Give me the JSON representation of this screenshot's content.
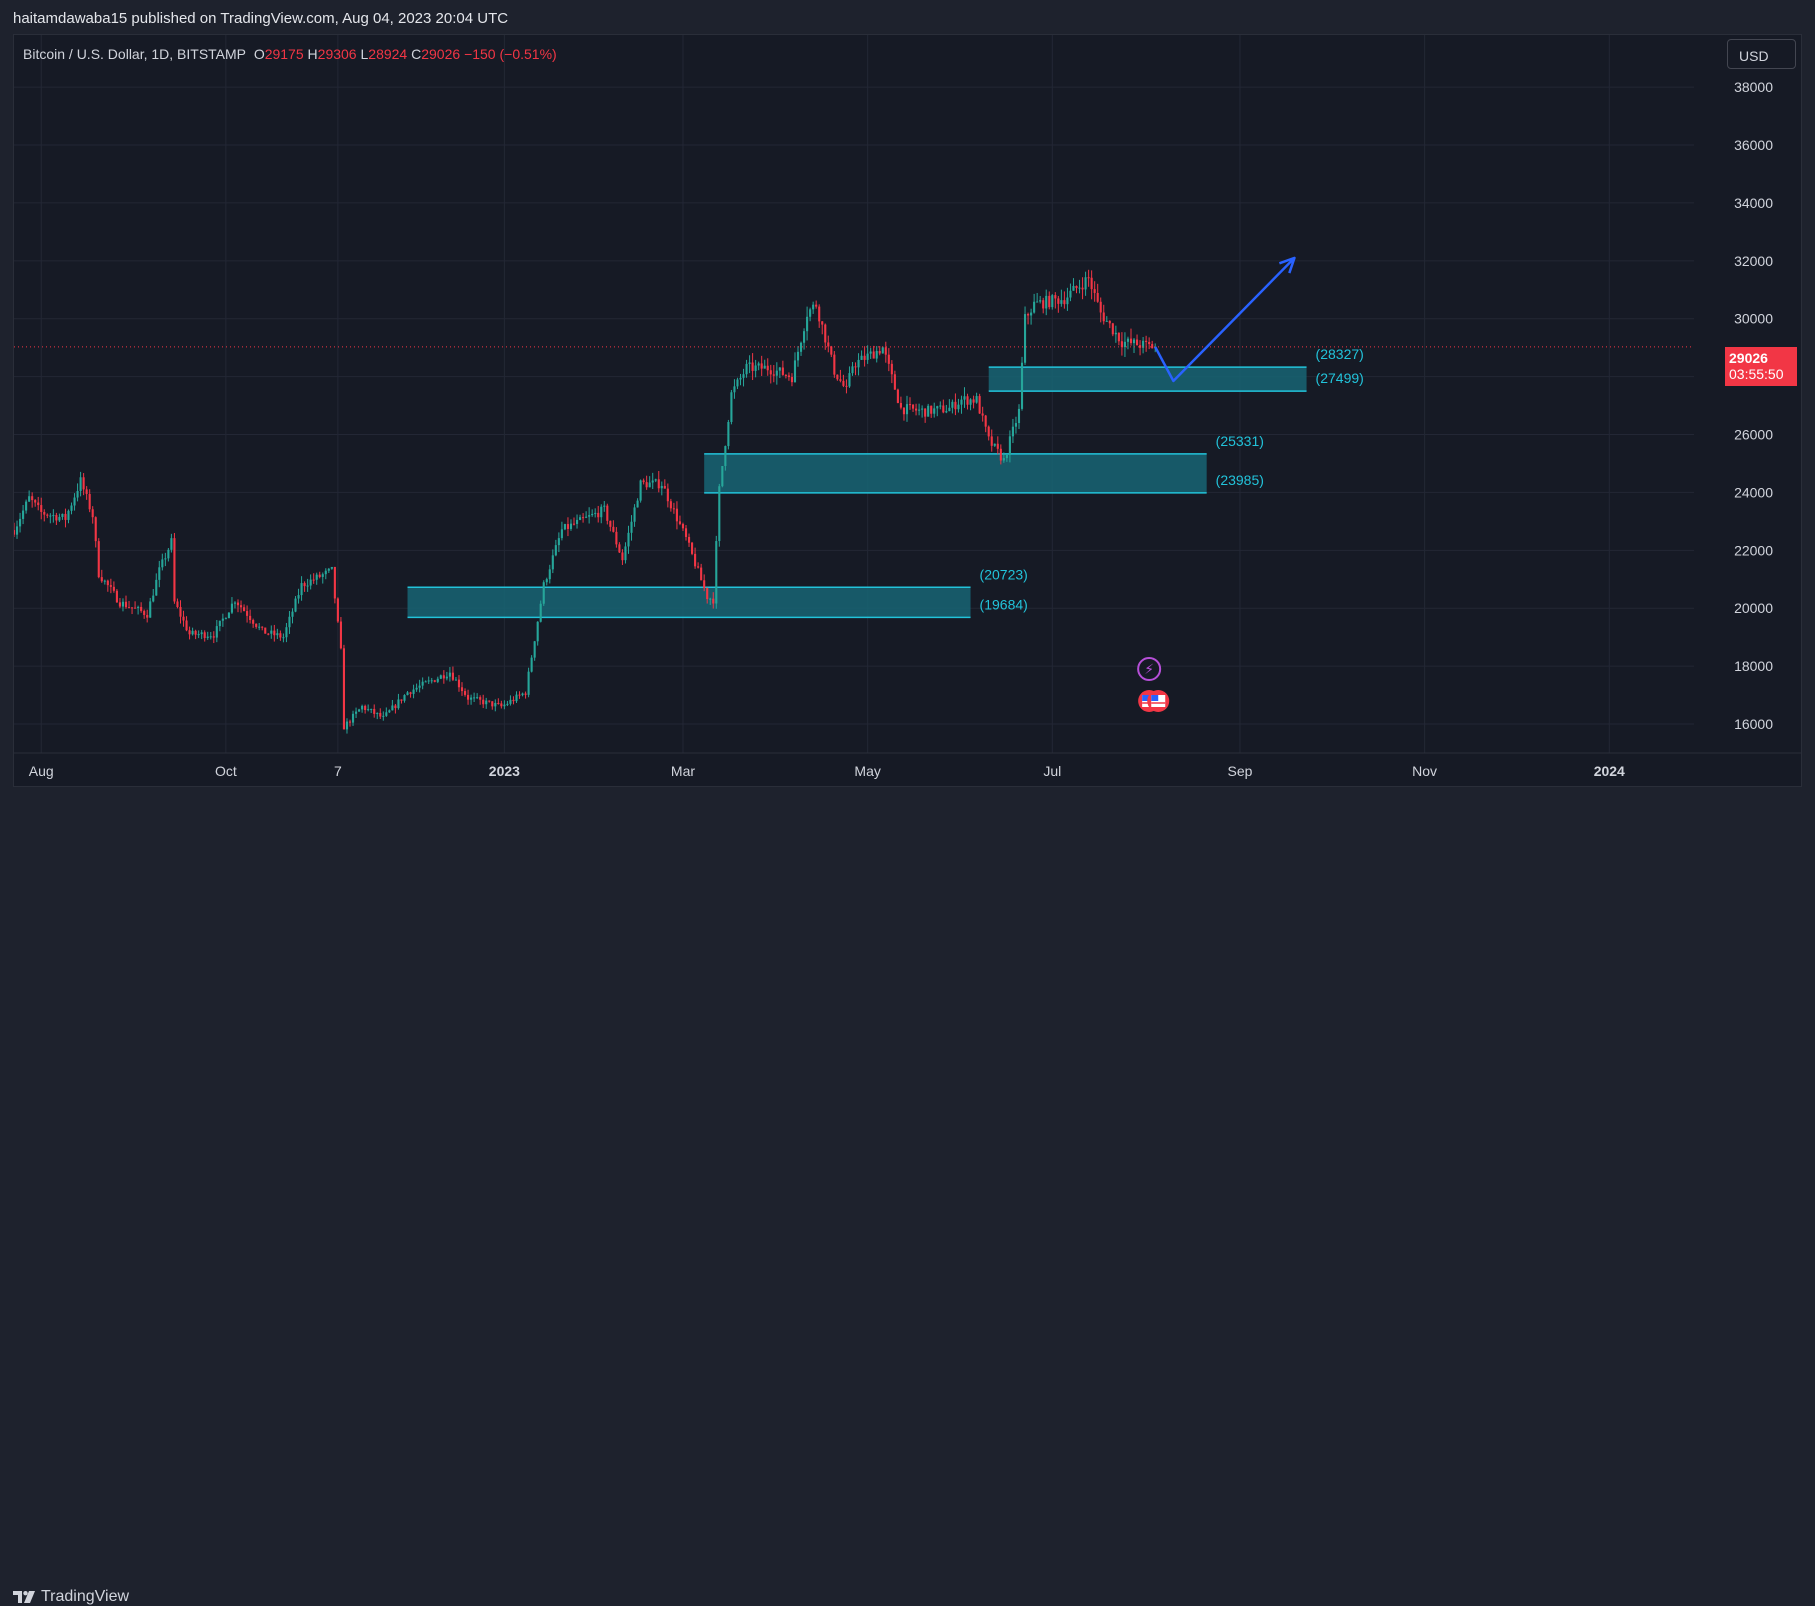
{
  "header": {
    "published_by": "haitamdawaba15 published on TradingView.com, Aug 04, 2023 20:04 UTC"
  },
  "legend": {
    "symbol": "Bitcoin / U.S. Dollar, 1D, BITSTAMP",
    "o_label": "O",
    "o_value": "29175",
    "h_label": "H",
    "h_value": "29306",
    "l_label": "L",
    "l_value": "28924",
    "c_label": "C",
    "c_value": "29026",
    "change": "−150 (−0.51%)"
  },
  "currency": "USD",
  "last_price": {
    "price": "29026",
    "countdown": "03:55:50"
  },
  "footer": {
    "brand": "TradingView"
  },
  "colors": {
    "up": "#26a69a",
    "down": "#f23645",
    "zone_fill": "#176574",
    "zone_border": "#22c3da",
    "arrow": "#2962ff",
    "grid": "#232735",
    "axis_text": "#d1d4dc",
    "zone_label": "#22c3da"
  },
  "icons": [
    "lightning-event-icon",
    "us-flag-event-icon"
  ],
  "chart_data": {
    "type": "candlestick",
    "title": "Bitcoin / U.S. Dollar, 1D, BITSTAMP",
    "x_ticks": [
      "Aug",
      "Oct",
      "7",
      "2023",
      "Mar",
      "May",
      "Jul",
      "Sep",
      "Nov",
      "2024"
    ],
    "x_tick_dates": [
      "2022-08-01",
      "2022-10-01",
      "2022-11-07",
      "2023-01-01",
      "2023-03-01",
      "2023-05-01",
      "2023-07-01",
      "2023-09-01",
      "2023-11-01",
      "2024-01-01"
    ],
    "y_ticks": [
      16000,
      18000,
      20000,
      22000,
      24000,
      26000,
      28000,
      30000,
      32000,
      34000,
      36000,
      38000
    ],
    "ylim": [
      15000,
      39800
    ],
    "xlim": [
      "2022-07-23",
      "2024-03-05"
    ],
    "grid": true,
    "last_price": 29026,
    "price_path": [
      [
        "2022-07-23",
        22700
      ],
      [
        "2022-07-28",
        23800
      ],
      [
        "2022-08-01",
        23300
      ],
      [
        "2022-08-09",
        23100
      ],
      [
        "2022-08-14",
        24400
      ],
      [
        "2022-08-18",
        23200
      ],
      [
        "2022-08-20",
        21200
      ],
      [
        "2022-08-27",
        20200
      ],
      [
        "2022-09-05",
        19800
      ],
      [
        "2022-09-09",
        21300
      ],
      [
        "2022-09-13",
        22300
      ],
      [
        "2022-09-14",
        20200
      ],
      [
        "2022-09-19",
        19100
      ],
      [
        "2022-09-27",
        19100
      ],
      [
        "2022-10-04",
        20300
      ],
      [
        "2022-10-13",
        19200
      ],
      [
        "2022-10-20",
        19000
      ],
      [
        "2022-10-26",
        20800
      ],
      [
        "2022-11-05",
        21300
      ],
      [
        "2022-11-08",
        18500
      ],
      [
        "2022-11-09",
        15900
      ],
      [
        "2022-11-15",
        16600
      ],
      [
        "2022-11-22",
        16200
      ],
      [
        "2022-11-30",
        17100
      ],
      [
        "2022-12-14",
        17800
      ],
      [
        "2022-12-20",
        16900
      ],
      [
        "2022-12-31",
        16600
      ],
      [
        "2023-01-08",
        17100
      ],
      [
        "2023-01-14",
        20800
      ],
      [
        "2023-01-20",
        22700
      ],
      [
        "2023-02-03",
        23400
      ],
      [
        "2023-02-09",
        21700
      ],
      [
        "2023-02-15",
        24300
      ],
      [
        "2023-02-22",
        24300
      ],
      [
        "2023-03-02",
        22400
      ],
      [
        "2023-03-09",
        20400
      ],
      [
        "2023-03-11",
        20300
      ],
      [
        "2023-03-13",
        24100
      ],
      [
        "2023-03-17",
        27400
      ],
      [
        "2023-03-22",
        28300
      ],
      [
        "2023-03-29",
        28300
      ],
      [
        "2023-04-06",
        28000
      ],
      [
        "2023-04-11",
        30200
      ],
      [
        "2023-04-14",
        30500
      ],
      [
        "2023-04-20",
        28200
      ],
      [
        "2023-04-24",
        27500
      ],
      [
        "2023-04-26",
        28400
      ],
      [
        "2023-05-06",
        29000
      ],
      [
        "2023-05-12",
        26900
      ],
      [
        "2023-05-20",
        26800
      ],
      [
        "2023-05-28",
        26900
      ],
      [
        "2023-06-01",
        27200
      ],
      [
        "2023-06-06",
        27200
      ],
      [
        "2023-06-10",
        25800
      ],
      [
        "2023-06-15",
        25100
      ],
      [
        "2023-06-20",
        26800
      ],
      [
        "2023-06-22",
        30000
      ],
      [
        "2023-06-25",
        30500
      ],
      [
        "2023-07-05",
        30700
      ],
      [
        "2023-07-13",
        31400
      ],
      [
        "2023-07-17",
        30200
      ],
      [
        "2023-07-24",
        29200
      ],
      [
        "2023-08-04",
        29026
      ]
    ],
    "zones": [
      {
        "top": 28327,
        "bottom": 27499,
        "start": "2023-06-10",
        "end": "2023-09-23",
        "top_label": "(28327)",
        "bottom_label": "(27499)"
      },
      {
        "top": 25331,
        "bottom": 23985,
        "start": "2023-03-08",
        "end": "2023-08-21",
        "top_label": "(25331)",
        "bottom_label": "(23985)"
      },
      {
        "top": 20723,
        "bottom": 19684,
        "start": "2022-11-30",
        "end": "2023-06-04",
        "top_label": "(20723)",
        "bottom_label": "(19684)"
      }
    ],
    "projection": [
      [
        "2023-08-04",
        29026
      ],
      [
        "2023-08-10",
        27850
      ],
      [
        "2023-09-19",
        32100
      ]
    ],
    "events": [
      {
        "date": "2023-08-02",
        "icon": "lightning-event-icon"
      },
      {
        "date": "2023-08-02",
        "icon": "us-flag-event-icon"
      },
      {
        "date": "2023-08-05",
        "icon": "us-flag-event-icon"
      }
    ]
  }
}
